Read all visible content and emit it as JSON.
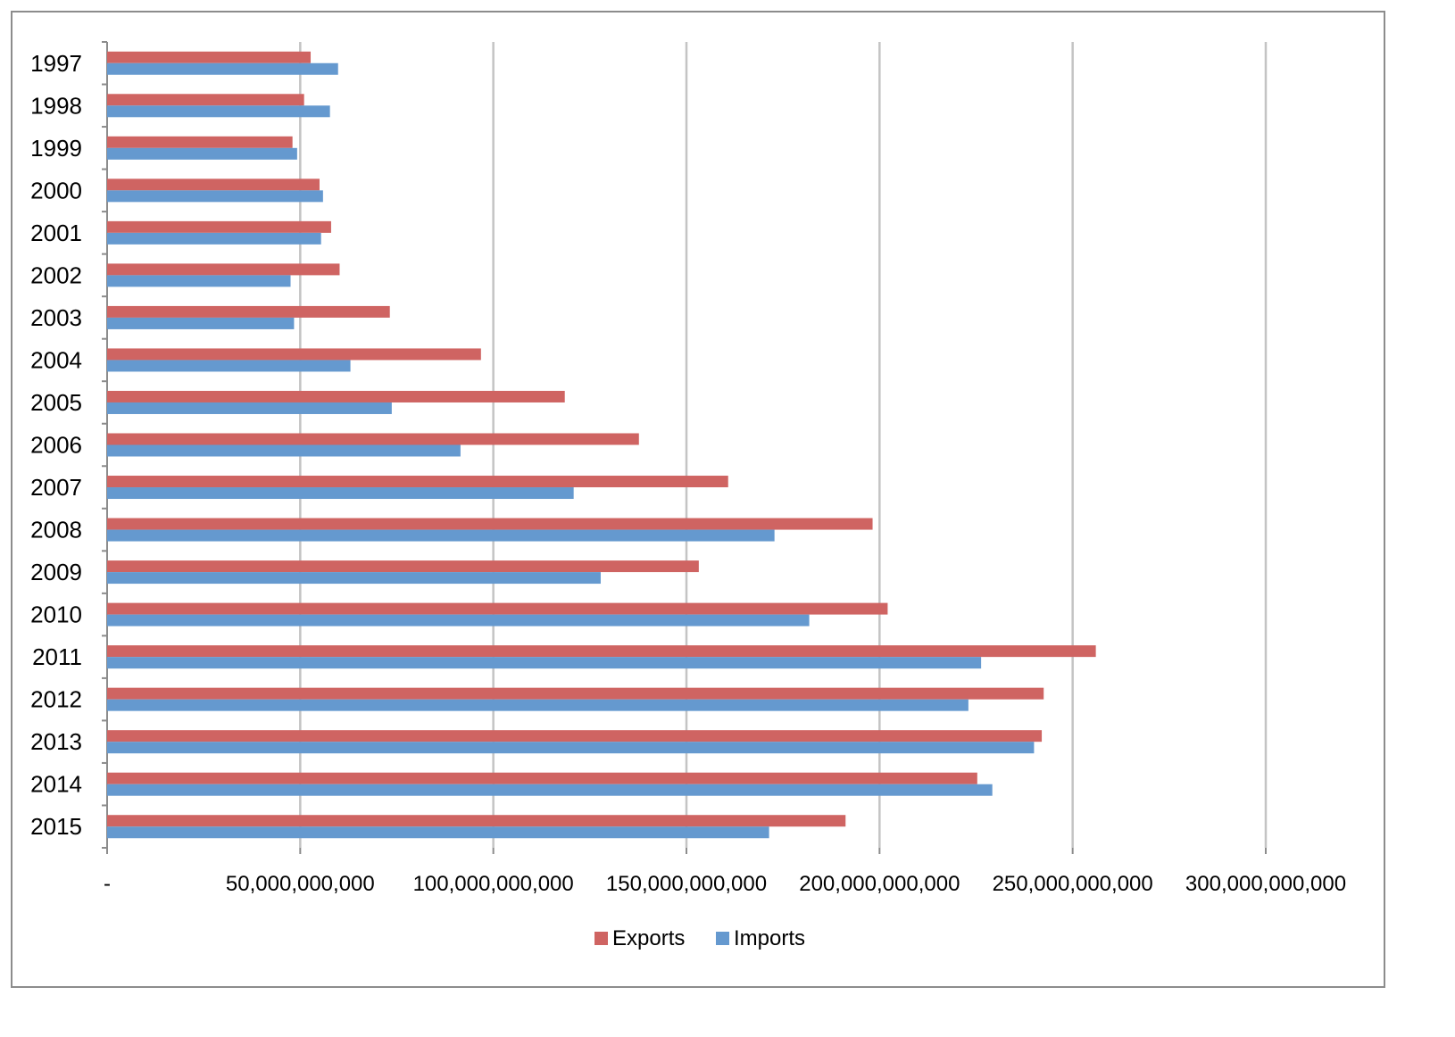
{
  "chart_data": {
    "type": "bar",
    "orientation": "horizontal",
    "title": "",
    "xlabel": "",
    "ylabel": "",
    "categories": [
      "1997",
      "1998",
      "1999",
      "2000",
      "2001",
      "2002",
      "2003",
      "2004",
      "2005",
      "2006",
      "2007",
      "2008",
      "2009",
      "2010",
      "2011",
      "2012",
      "2013",
      "2014",
      "2015"
    ],
    "series": [
      {
        "name": "Exports",
        "color": "#cf6462",
        "values": [
          52700000000,
          51000000000,
          48000000000,
          55000000000,
          58000000000,
          60200000000,
          73200000000,
          96800000000,
          118500000000,
          137700000000,
          160800000000,
          198200000000,
          153200000000,
          202100000000,
          256000000000,
          242500000000,
          242000000000,
          225300000000,
          191200000000
        ]
      },
      {
        "name": "Imports",
        "color": "#6599cf",
        "values": [
          59800000000,
          57700000000,
          49200000000,
          55900000000,
          55400000000,
          47500000000,
          48400000000,
          63000000000,
          73700000000,
          91500000000,
          120800000000,
          172800000000,
          127800000000,
          181800000000,
          226300000000,
          223000000000,
          240000000000,
          229200000000,
          171400000000
        ]
      }
    ],
    "xlim": [
      0,
      300000000000
    ],
    "x_ticks": [
      0,
      50000000000,
      100000000000,
      150000000000,
      200000000000,
      250000000000,
      300000000000
    ],
    "x_tick_labels": [
      "-",
      "50,000,000,000",
      "100,000,000,000",
      "150,000,000,000",
      "200,000,000,000",
      "250,000,000,000",
      "300,000,000,000"
    ],
    "grid": "vertical",
    "legend_position": "bottom"
  }
}
